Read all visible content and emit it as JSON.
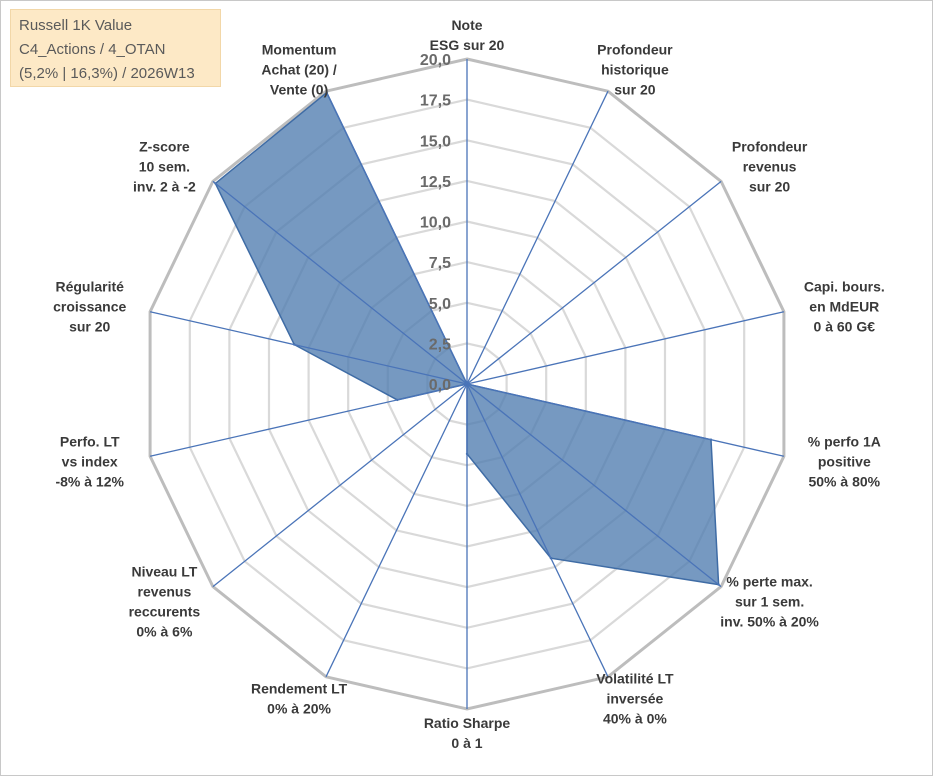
{
  "info_box": {
    "line1": "Russell 1K Value",
    "line2": "C4_Actions / 4_OTAN",
    "line3": "(5,2% | 16,3%) / 2026W13"
  },
  "colors": {
    "series_fill": "#4f7cb0",
    "series_stroke": "#3f6ca5",
    "grid_outer": "#bdbdbd",
    "grid_inner": "#d9d9d9",
    "spoke": "#4a74b8"
  },
  "chart_data": {
    "type": "radar",
    "title": "",
    "rlim": [
      0,
      20
    ],
    "ticks": [
      "0,0",
      "2,5",
      "5,0",
      "7,5",
      "10,0",
      "12,5",
      "15,0",
      "17,5",
      "20,0"
    ],
    "tick_values": [
      0,
      2.5,
      5,
      7.5,
      10,
      12.5,
      15,
      17.5,
      20
    ],
    "axes": [
      [
        "Note",
        "ESG sur 20"
      ],
      [
        "Profondeur",
        "historique",
        "sur 20"
      ],
      [
        "Profondeur",
        "revenus",
        "sur 20"
      ],
      [
        "Capi. bours.",
        "en MdEUR",
        "0 à 60 G€"
      ],
      [
        "% perfo 1A",
        "positive",
        "50% à 80%"
      ],
      [
        "% perte max.",
        "sur 1 sem.",
        "inv. 50% à 20%"
      ],
      [
        "Volatilité LT",
        "inversée",
        "40% à 0%"
      ],
      [
        "Ratio Sharpe",
        "0 à 1"
      ],
      [
        "Rendement LT",
        "0% à 20%"
      ],
      [
        "Niveau LT",
        "revenus",
        "reccurents",
        "0% à 6%"
      ],
      [
        "Perfo. LT",
        "vs index",
        "-8% à 12%"
      ],
      [
        "Régularité",
        "croissance",
        "sur 20"
      ],
      [
        "Z-score",
        "10 sem.",
        "inv. 2 à -2"
      ],
      [
        "Momentum",
        "Achat (20) /",
        "Vente (0)"
      ]
    ],
    "series": [
      {
        "name": "Russell 1K Value",
        "values": [
          0,
          0,
          0,
          0,
          15.4,
          19.8,
          11.9,
          4.3,
          0,
          0,
          4.4,
          10.9,
          19.8,
          19.9
        ]
      }
    ]
  }
}
